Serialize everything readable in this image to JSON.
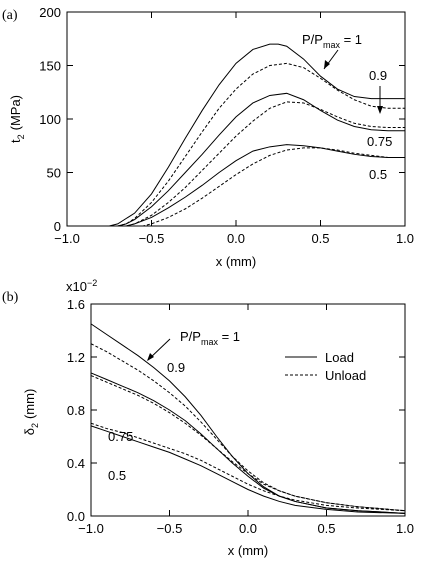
{
  "chart_data": [
    {
      "panel": "(a)",
      "type": "line",
      "xlabel": "x (mm)",
      "ylabel_main": "t",
      "ylabel_sub": "2",
      "ylabel_unit": "(MPa)",
      "xlim": [
        -1.0,
        1.0
      ],
      "ylim": [
        0,
        200
      ],
      "xticks": [
        "−1.0",
        "−0.5",
        "0.0",
        "0.5",
        "1.0"
      ],
      "yticks": [
        "0",
        "50",
        "100",
        "150",
        "200"
      ],
      "xtick_values": [
        -1.0,
        -0.5,
        0.0,
        0.5,
        1.0
      ],
      "ytick_values": [
        0,
        50,
        100,
        150,
        200
      ],
      "legend_title": {
        "main": "P/P",
        "sub": "max",
        "suffix": " = 1"
      },
      "labels": [
        "0.9",
        "0.75",
        "0.5"
      ],
      "series": [
        {
          "style": "solid",
          "x": [
            -1.0,
            -0.75,
            -0.7,
            -0.6,
            -0.5,
            -0.4,
            -0.3,
            -0.2,
            -0.1,
            0.0,
            0.1,
            0.2,
            0.25,
            0.3,
            0.4,
            0.5,
            0.6,
            0.7,
            0.8,
            0.9,
            1.0
          ],
          "y": [
            0,
            0,
            2,
            12,
            30,
            55,
            82,
            108,
            132,
            152,
            165,
            170,
            170,
            168,
            156,
            140,
            128,
            121,
            119,
            119,
            119
          ]
        },
        {
          "style": "dashed",
          "x": [
            -1.0,
            -0.7,
            -0.65,
            -0.6,
            -0.5,
            -0.4,
            -0.3,
            -0.2,
            -0.1,
            0.0,
            0.1,
            0.2,
            0.3,
            0.4,
            0.5,
            0.6,
            0.7,
            0.8,
            0.9,
            1.0
          ],
          "y": [
            0,
            0,
            2,
            7,
            22,
            42,
            65,
            88,
            110,
            128,
            142,
            150,
            152,
            148,
            138,
            127,
            118,
            112,
            110,
            110
          ]
        },
        {
          "style": "solid",
          "x": [
            -1.0,
            -0.7,
            -0.65,
            -0.6,
            -0.5,
            -0.4,
            -0.3,
            -0.2,
            -0.1,
            0.0,
            0.1,
            0.2,
            0.3,
            0.4,
            0.5,
            0.6,
            0.7,
            0.8,
            0.9,
            1.0
          ],
          "y": [
            0,
            0,
            2,
            6,
            18,
            33,
            50,
            67,
            85,
            102,
            115,
            122,
            124,
            118,
            108,
            99,
            93,
            90,
            89,
            89
          ]
        },
        {
          "style": "dashed",
          "x": [
            -1.0,
            -0.65,
            -0.6,
            -0.5,
            -0.4,
            -0.3,
            -0.2,
            -0.1,
            0.0,
            0.1,
            0.2,
            0.3,
            0.4,
            0.5,
            0.6,
            0.7,
            0.8,
            0.9,
            1.0
          ],
          "y": [
            0,
            0,
            2,
            10,
            22,
            36,
            52,
            68,
            84,
            98,
            110,
            116,
            115,
            109,
            102,
            96,
            93,
            92,
            92
          ]
        },
        {
          "style": "solid",
          "x": [
            -1.0,
            -0.65,
            -0.6,
            -0.5,
            -0.4,
            -0.3,
            -0.2,
            -0.1,
            0.0,
            0.1,
            0.2,
            0.3,
            0.4,
            0.5,
            0.6,
            0.7,
            0.8,
            0.9,
            1.0
          ],
          "y": [
            0,
            0,
            2,
            8,
            17,
            27,
            38,
            50,
            61,
            70,
            74,
            76,
            75,
            73,
            70,
            67,
            65,
            64,
            64
          ]
        },
        {
          "style": "dashed",
          "x": [
            -1.0,
            -0.55,
            -0.5,
            -0.4,
            -0.3,
            -0.2,
            -0.1,
            0.0,
            0.1,
            0.2,
            0.3,
            0.4,
            0.5,
            0.6,
            0.7,
            0.8,
            0.9,
            1.0
          ],
          "y": [
            0,
            0,
            2,
            8,
            16,
            26,
            37,
            48,
            58,
            66,
            71,
            73,
            73,
            71,
            68,
            66,
            64,
            64
          ]
        }
      ]
    },
    {
      "panel": "(b)",
      "type": "line",
      "xlabel": "x (mm)",
      "ylabel_main": "δ",
      "ylabel_sub": "2",
      "ylabel_unit": "(mm)",
      "scale_label": "x10",
      "scale_exp": "−2",
      "xlim": [
        -1.0,
        1.0
      ],
      "ylim": [
        0.0,
        1.6
      ],
      "xticks": [
        "−1.0",
        "−0.5",
        "0.0",
        "0.5",
        "1.0"
      ],
      "yticks": [
        "0.0",
        "0.4",
        "0.8",
        "1.2",
        "1.6"
      ],
      "xtick_values": [
        -1.0,
        -0.5,
        0.0,
        0.5,
        1.0
      ],
      "ytick_values": [
        0.0,
        0.4,
        0.8,
        1.2,
        1.6
      ],
      "legend_title": {
        "main": "P/P",
        "sub": "max",
        "suffix": " = 1"
      },
      "labels": [
        "0.9",
        "0.75",
        "0.5"
      ],
      "legend": [
        {
          "name": "Load",
          "style": "solid"
        },
        {
          "name": "Unload",
          "style": "dashed"
        }
      ],
      "series": [
        {
          "style": "solid",
          "x": [
            -1.0,
            -0.9,
            -0.8,
            -0.7,
            -0.6,
            -0.5,
            -0.4,
            -0.3,
            -0.2,
            -0.1,
            0.0,
            0.1,
            0.2,
            0.3,
            0.5,
            0.7,
            1.0
          ],
          "y": [
            1.45,
            1.37,
            1.29,
            1.21,
            1.12,
            1.02,
            0.9,
            0.76,
            0.6,
            0.45,
            0.32,
            0.22,
            0.15,
            0.11,
            0.06,
            0.04,
            0.02
          ]
        },
        {
          "style": "dashed",
          "x": [
            -1.0,
            -0.9,
            -0.8,
            -0.7,
            -0.6,
            -0.5,
            -0.4,
            -0.3,
            -0.2,
            -0.1,
            0.0,
            0.1,
            0.2,
            0.3,
            0.5,
            0.7,
            1.0
          ],
          "y": [
            1.3,
            1.24,
            1.17,
            1.1,
            1.02,
            0.93,
            0.83,
            0.71,
            0.58,
            0.45,
            0.34,
            0.25,
            0.19,
            0.15,
            0.1,
            0.07,
            0.04
          ]
        },
        {
          "style": "solid",
          "x": [
            -1.0,
            -0.9,
            -0.8,
            -0.7,
            -0.6,
            -0.5,
            -0.4,
            -0.3,
            -0.2,
            -0.1,
            0.0,
            0.1,
            0.2,
            0.3,
            0.5,
            0.7,
            1.0
          ],
          "y": [
            1.08,
            1.03,
            0.98,
            0.93,
            0.87,
            0.8,
            0.72,
            0.62,
            0.51,
            0.4,
            0.3,
            0.21,
            0.15,
            0.11,
            0.06,
            0.04,
            0.02
          ]
        },
        {
          "style": "dashed",
          "x": [
            -1.0,
            -0.9,
            -0.8,
            -0.7,
            -0.6,
            -0.5,
            -0.4,
            -0.3,
            -0.2,
            -0.1,
            0.0,
            0.1,
            0.2,
            0.3,
            0.5,
            0.7,
            1.0
          ],
          "y": [
            1.06,
            1.01,
            0.96,
            0.91,
            0.85,
            0.78,
            0.7,
            0.61,
            0.51,
            0.41,
            0.32,
            0.24,
            0.19,
            0.15,
            0.1,
            0.07,
            0.04
          ]
        },
        {
          "style": "solid",
          "x": [
            -1.0,
            -0.9,
            -0.8,
            -0.7,
            -0.6,
            -0.5,
            -0.4,
            -0.3,
            -0.2,
            -0.1,
            0.0,
            0.1,
            0.2,
            0.3,
            0.5,
            0.7,
            1.0
          ],
          "y": [
            0.68,
            0.64,
            0.6,
            0.56,
            0.52,
            0.48,
            0.43,
            0.38,
            0.32,
            0.26,
            0.2,
            0.15,
            0.11,
            0.08,
            0.05,
            0.03,
            0.02
          ]
        },
        {
          "style": "dashed",
          "x": [
            -1.0,
            -0.9,
            -0.8,
            -0.7,
            -0.6,
            -0.5,
            -0.4,
            -0.3,
            -0.2,
            -0.1,
            0.0,
            0.1,
            0.2,
            0.3,
            0.5,
            0.7,
            1.0
          ],
          "y": [
            0.7,
            0.66,
            0.63,
            0.59,
            0.55,
            0.51,
            0.47,
            0.42,
            0.36,
            0.3,
            0.24,
            0.19,
            0.15,
            0.12,
            0.08,
            0.06,
            0.04
          ]
        }
      ]
    }
  ]
}
